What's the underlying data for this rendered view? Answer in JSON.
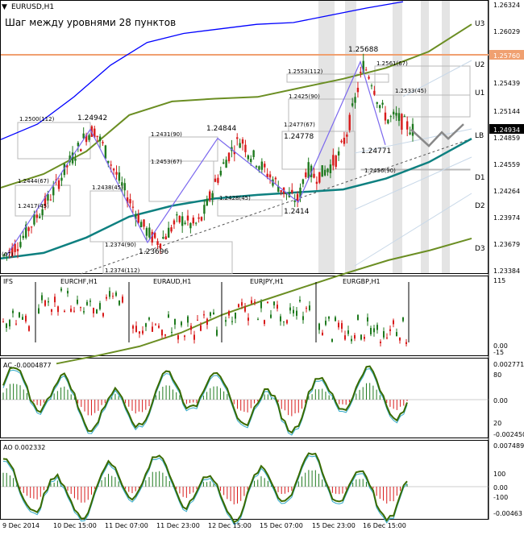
{
  "window": {
    "symbol_label": "EURUSD,H1",
    "chevron": "triangle-down-icon"
  },
  "main": {
    "title": "Шаг между уровнями 28 пунктов",
    "price_scale": [
      "1.26324",
      "1.26029",
      "1.25760",
      "1.25439",
      "1.25144",
      "1.24934",
      "1.24859",
      "1.24559",
      "1.24264",
      "1.23974",
      "1.23679",
      "1.23384"
    ],
    "current_price": "1.24934",
    "orange_level_price": "1.25760",
    "level_labels": [
      "U3",
      "U2",
      "U1",
      "LB",
      "D1",
      "D2",
      "D3"
    ],
    "swing_labels": [
      "1.25688",
      "1.24942",
      "1.24844",
      "1.24778",
      "1.24771",
      "1.2414",
      "1.23696"
    ],
    "box_labels": [
      "1.2500(112)",
      "1.2444(67)",
      "1.2417(45)",
      "1.2438(45)",
      "1.2374(90)",
      "1.2374(112)",
      "1.2431(90)",
      "1.2453(67)",
      "1.2428(45)",
      "1.2477(67)",
      "1.2425(90)",
      "1.2456(90)",
      "1.2553(112)",
      "1.2561(67)",
      "1.2533(45)",
      "(67)"
    ],
    "colors": {
      "candle_up": "#1f7a1f",
      "candle_down": "#d81b1b",
      "upper_band": "#0000ff",
      "mid_band": "#6b8e23",
      "basis": "#0e8080",
      "orange": "#f0a070",
      "zigzag": "#7b68ee"
    }
  },
  "ifs_panel": {
    "label": "IFS",
    "pairs": [
      "EURCHF,H1",
      "EURAUD,H1",
      "EURJPY,H1",
      "EURGBP,H1"
    ],
    "scale": [
      "115",
      "0.00",
      "-15"
    ]
  },
  "ac_panel": {
    "label": "AC -0.0004877",
    "scale": [
      "0.002771",
      "80",
      "0.00",
      "20",
      "-0.002450"
    ]
  },
  "ao_panel": {
    "label": "AO 0.002332",
    "scale": [
      "0.007489",
      "100",
      "0.00",
      "-100",
      "-0.00463"
    ]
  },
  "time_axis": [
    "9 Dec 2014",
    "10 Dec 15:00",
    "11 Dec 07:00",
    "11 Dec 23:00",
    "12 Dec 15:00",
    "15 Dec 07:00",
    "15 Dec 23:00",
    "16 Dec 15:00"
  ],
  "chart_data": {
    "type": "candlestick",
    "symbol": "EURUSD",
    "timeframe": "H1",
    "x": [
      "9 Dec 2014",
      "10 Dec 15:00",
      "11 Dec 07:00",
      "11 Dec 23:00",
      "12 Dec 15:00",
      "15 Dec 07:00",
      "15 Dec 23:00",
      "16 Dec 15:00"
    ],
    "ylim": [
      1.23384,
      1.26324
    ],
    "close_path": [
      1.2355,
      1.2362,
      1.2371,
      1.2385,
      1.2398,
      1.2412,
      1.2425,
      1.2442,
      1.2458,
      1.2472,
      1.2488,
      1.2494,
      1.2478,
      1.2458,
      1.244,
      1.2422,
      1.2405,
      1.2388,
      1.2376,
      1.237,
      1.238,
      1.2392,
      1.2395,
      1.2388,
      1.2392,
      1.2415,
      1.2438,
      1.2458,
      1.2474,
      1.2484,
      1.2468,
      1.2459,
      1.2448,
      1.2438,
      1.2428,
      1.242,
      1.2416,
      1.2452,
      1.2442,
      1.2446,
      1.2455,
      1.2466,
      1.2492,
      1.2528,
      1.2566,
      1.2548,
      1.252,
      1.2505,
      1.2508,
      1.25,
      1.2494
    ],
    "zigzag": [
      1.2355,
      1.24942,
      1.23696,
      1.24844,
      1.2414,
      1.25688,
      1.24771
    ],
    "upper_band": [
      1.2483,
      1.25,
      1.253,
      1.2565,
      1.259,
      1.26,
      1.2605,
      1.261,
      1.2612,
      1.262,
      1.2628,
      1.2635
    ],
    "middle_band": [
      1.243,
      1.2445,
      1.247,
      1.251,
      1.2525,
      1.2528,
      1.253,
      1.254,
      1.255,
      1.2562,
      1.258,
      1.261
    ],
    "basis": [
      1.2352,
      1.2358,
      1.2375,
      1.2398,
      1.241,
      1.2418,
      1.2422,
      1.2425,
      1.2428,
      1.244,
      1.2458,
      1.2484
    ],
    "lower_band": [
      1.2236,
      1.2245,
      1.2255,
      1.227,
      1.229,
      1.2306,
      1.2321,
      1.2336,
      1.235,
      1.2361,
      1.2374
    ],
    "horizontal_level": 1.2576,
    "projection": [
      1.2494,
      1.2476,
      1.2491,
      1.2484,
      1.25
    ]
  }
}
